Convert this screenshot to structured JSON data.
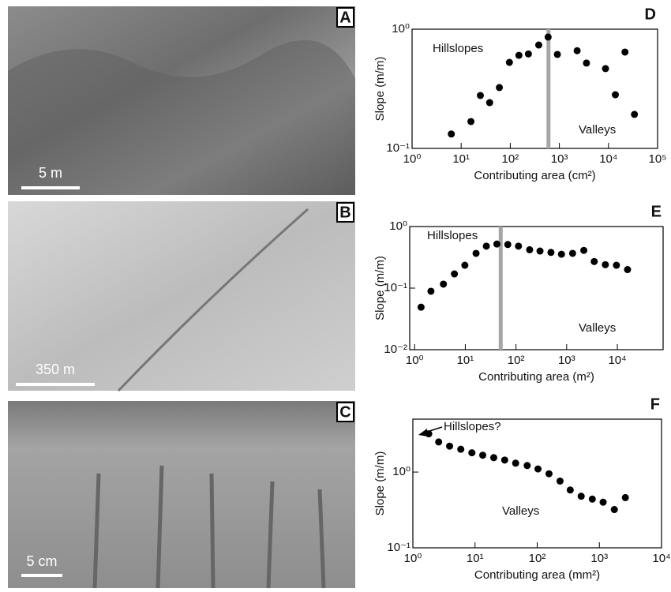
{
  "panels": [
    {
      "letter": "A",
      "scale_bar": "5 m"
    },
    {
      "letter": "B",
      "scale_bar": "350 m"
    },
    {
      "letter": "C",
      "scale_bar": "5 cm"
    }
  ],
  "chart_data": [
    {
      "type": "scatter",
      "label": "D",
      "x_label": "Contributing area (cm²)",
      "y_label": "Slope (m/m)",
      "log_x": true,
      "log_y": true,
      "xlim": [
        1,
        100000
      ],
      "ylim": [
        0.1,
        1
      ],
      "xticks": [
        {
          "value": 1,
          "label": "10⁰"
        },
        {
          "value": 10,
          "label": "10¹"
        },
        {
          "value": 100,
          "label": "10²"
        },
        {
          "value": 1000,
          "label": "10³"
        },
        {
          "value": 10000,
          "label": "10⁴"
        },
        {
          "value": 100000,
          "label": "10⁵"
        }
      ],
      "yticks": [
        {
          "value": 0.1,
          "label": "10⁻¹"
        },
        {
          "value": 1,
          "label": "10⁰"
        }
      ],
      "vline": 600,
      "vline_color": "#a6a6a6",
      "annotations": [
        "Hillslopes",
        "Valleys"
      ],
      "series": [
        {
          "color": "#000000",
          "x": [
            6.3,
            15.8,
            24.6,
            38,
            60,
            96,
            150,
            234,
            380,
            590,
            910,
            2300,
            3560,
            8700,
            13800,
            21700,
            33800
          ],
          "values": [
            0.132,
            0.168,
            0.278,
            0.242,
            0.324,
            0.527,
            0.604,
            0.62,
            0.737,
            0.86,
            0.614,
            0.66,
            0.52,
            0.467,
            0.282,
            0.643,
            0.193
          ]
        }
      ]
    },
    {
      "type": "scatter",
      "label": "E",
      "x_label": "Contributing area (m²)",
      "y_label": "Slope (m/m)",
      "log_x": true,
      "log_y": true,
      "xlim": [
        0.8,
        80000
      ],
      "ylim": [
        0.01,
        1
      ],
      "xticks": [
        {
          "value": 1,
          "label": "10⁰"
        },
        {
          "value": 10,
          "label": "10¹"
        },
        {
          "value": 100,
          "label": "10²"
        },
        {
          "value": 1000,
          "label": "10³"
        },
        {
          "value": 10000,
          "label": "10⁴"
        }
      ],
      "yticks": [
        {
          "value": 0.01,
          "label": "10⁻²"
        },
        {
          "value": 0.1,
          "label": "10⁻¹"
        },
        {
          "value": 1,
          "label": "10⁰"
        }
      ],
      "vline": 50,
      "vline_color": "#a6a6a6",
      "annotations": [
        "Hillslopes",
        "Valleys"
      ],
      "series": [
        {
          "color": "#000000",
          "x": [
            1.34,
            2.1,
            3.7,
            6.1,
            9.8,
            16.3,
            26,
            42,
            69,
            112,
            186,
            298,
            490,
            790,
            1310,
            2180,
            3500,
            5800,
            9600,
            15900
          ],
          "values": [
            0.049,
            0.089,
            0.116,
            0.17,
            0.235,
            0.367,
            0.48,
            0.52,
            0.51,
            0.48,
            0.42,
            0.4,
            0.38,
            0.355,
            0.367,
            0.41,
            0.27,
            0.24,
            0.235,
            0.2
          ]
        }
      ]
    },
    {
      "type": "scatter",
      "label": "F",
      "x_label": "Contributing area (mm²)",
      "y_label": "Slope (m/m)",
      "log_x": true,
      "log_y": true,
      "xlim": [
        1,
        10000
      ],
      "ylim": [
        0.1,
        5
      ],
      "xticks": [
        {
          "value": 1,
          "label": "10⁰"
        },
        {
          "value": 10,
          "label": "10¹"
        },
        {
          "value": 100,
          "label": "10²"
        },
        {
          "value": 1000,
          "label": "10³"
        },
        {
          "value": 10000,
          "label": "10⁴"
        }
      ],
      "yticks": [
        {
          "value": 0.1,
          "label": "10⁻¹"
        },
        {
          "value": 1,
          "label": "10⁰"
        }
      ],
      "annotations": [
        "Hillslopes?",
        "Valleys"
      ],
      "series": [
        {
          "color": "#000000",
          "x": [
            1.8,
            2.6,
            3.9,
            5.9,
            8.9,
            13.3,
            20,
            30,
            45,
            69,
            103,
            155,
            233,
            340,
            510,
            770,
            1150,
            1740,
            2620
          ],
          "values": [
            3.2,
            2.5,
            2.2,
            2.0,
            1.8,
            1.67,
            1.55,
            1.44,
            1.31,
            1.22,
            1.1,
            0.95,
            0.76,
            0.58,
            0.48,
            0.44,
            0.4,
            0.32,
            0.46
          ]
        }
      ]
    }
  ]
}
